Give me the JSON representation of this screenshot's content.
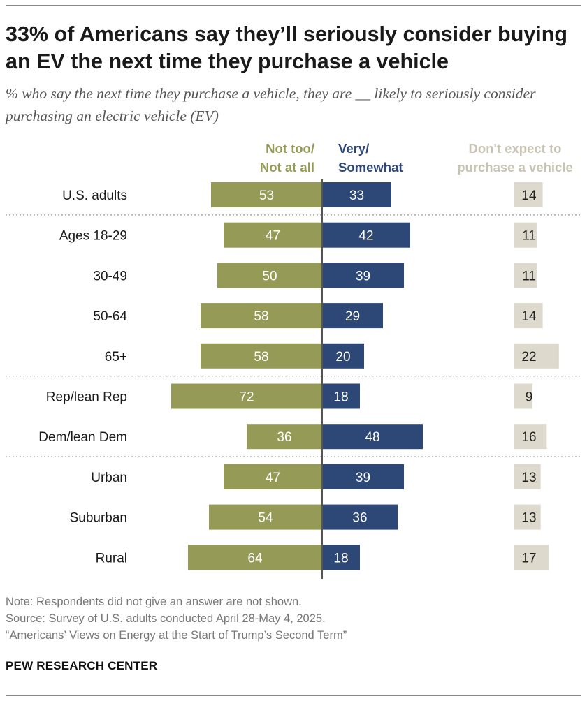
{
  "title": "33% of Americans say they’ll seriously consider buying an EV the next time they purchase a vehicle",
  "subtitle": "% who say the next time they purchase a vehicle, they are __ likely to seriously consider purchasing an electric vehicle (EV)",
  "colors": {
    "not_likely": "#959a56",
    "likely": "#2d4877",
    "no_purchase_box": "#ddd9cc",
    "no_purchase_header": "#c8c3b2"
  },
  "chart_data": {
    "type": "bar",
    "title": "33% of Americans say they’ll seriously consider buying an EV the next time they purchase a vehicle",
    "series": [
      {
        "name": "Not too/ Not at all",
        "header_lines": [
          "Not too/",
          "Not at all"
        ],
        "direction": "left",
        "values": [
          53,
          47,
          50,
          58,
          58,
          72,
          36,
          47,
          54,
          64
        ]
      },
      {
        "name": "Very/ Somewhat",
        "header_lines": [
          "Very/",
          "Somewhat"
        ],
        "direction": "right",
        "values": [
          33,
          42,
          39,
          29,
          20,
          18,
          48,
          39,
          36,
          18
        ]
      },
      {
        "name": "Don't expect to purchase a vehicle",
        "header_lines": [
          "Don't expect to",
          "purchase a vehicle"
        ],
        "direction": "box",
        "values": [
          14,
          11,
          11,
          14,
          22,
          9,
          16,
          13,
          13,
          17
        ]
      }
    ],
    "categories": [
      "U.S. adults",
      "Ages 18-29",
      "30-49",
      "50-64",
      "65+",
      "Rep/lean Rep",
      "Dem/lean Dem",
      "Urban",
      "Suburban",
      "Rural"
    ],
    "group_breaks_after": [
      0,
      4,
      6
    ],
    "xlim": [
      -100,
      100
    ]
  },
  "notes": {
    "note": "Note: Respondents did not give an answer are not shown.",
    "source": "Source: Survey of U.S. adults conducted April 28-May 4, 2025.",
    "report": "“Americans’ Views on Energy at the Start of Trump’s Second Term”"
  },
  "brand": "PEW RESEARCH CENTER"
}
